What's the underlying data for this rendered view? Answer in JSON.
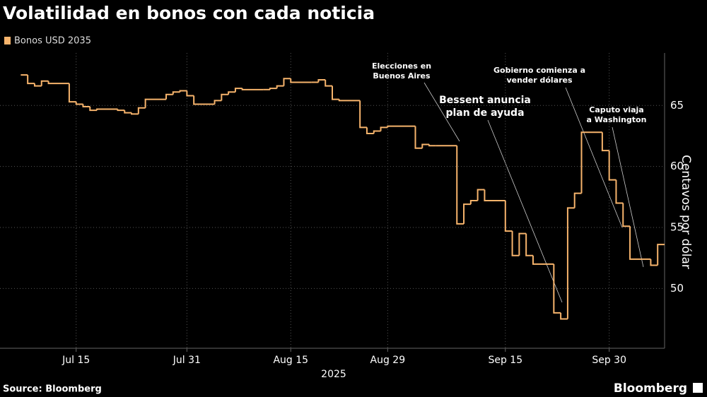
{
  "chart_data": {
    "type": "step",
    "title": "Volatilidad en bonos con cada noticia",
    "source": "Source: Bloomberg",
    "brand": "Bloomberg",
    "y_axis_label": "Centavos por dólar",
    "x_axis_year": "2025",
    "series": [
      {
        "name": "Bonos USD 2035",
        "color": "#f7b46c",
        "x": [
          "2025-07-07",
          "2025-07-08",
          "2025-07-09",
          "2025-07-10",
          "2025-07-11",
          "2025-07-14",
          "2025-07-15",
          "2025-07-16",
          "2025-07-17",
          "2025-07-18",
          "2025-07-21",
          "2025-07-22",
          "2025-07-23",
          "2025-07-24",
          "2025-07-25",
          "2025-07-28",
          "2025-07-29",
          "2025-07-30",
          "2025-07-31",
          "2025-08-01",
          "2025-08-04",
          "2025-08-05",
          "2025-08-06",
          "2025-08-07",
          "2025-08-08",
          "2025-08-11",
          "2025-08-12",
          "2025-08-13",
          "2025-08-14",
          "2025-08-15",
          "2025-08-18",
          "2025-08-19",
          "2025-08-20",
          "2025-08-21",
          "2025-08-22",
          "2025-08-25",
          "2025-08-26",
          "2025-08-27",
          "2025-08-28",
          "2025-08-29",
          "2025-09-02",
          "2025-09-03",
          "2025-09-04",
          "2025-09-05",
          "2025-09-08",
          "2025-09-09",
          "2025-09-10",
          "2025-09-11",
          "2025-09-12",
          "2025-09-15",
          "2025-09-16",
          "2025-09-17",
          "2025-09-18",
          "2025-09-19",
          "2025-09-22",
          "2025-09-23",
          "2025-09-24",
          "2025-09-25",
          "2025-09-26",
          "2025-09-29",
          "2025-09-30",
          "2025-10-01",
          "2025-10-02",
          "2025-10-03",
          "2025-10-06",
          "2025-10-07"
        ],
        "values": [
          67.5,
          66.8,
          66.6,
          67.0,
          66.8,
          65.3,
          65.1,
          64.9,
          64.6,
          64.7,
          64.6,
          64.4,
          64.3,
          64.8,
          65.5,
          65.9,
          66.1,
          66.2,
          65.8,
          65.1,
          65.4,
          65.9,
          66.1,
          66.4,
          66.3,
          66.3,
          66.4,
          66.6,
          67.2,
          66.9,
          66.9,
          67.1,
          66.6,
          65.5,
          65.4,
          63.2,
          62.7,
          62.9,
          63.2,
          63.3,
          61.5,
          61.8,
          61.7,
          61.7,
          55.3,
          56.9,
          57.2,
          58.1,
          57.2,
          54.7,
          52.7,
          54.5,
          52.7,
          52.0,
          48.0,
          47.5,
          56.6,
          57.8,
          62.8,
          61.3,
          58.9,
          57.0,
          55.1,
          52.4,
          51.9,
          53.6
        ]
      }
    ],
    "xlim": [
      "2025-07-04",
      "2025-10-08"
    ],
    "xticks": [
      {
        "value": "2025-07-15",
        "label": "Jul 15"
      },
      {
        "value": "2025-07-31",
        "label": "Jul 31"
      },
      {
        "value": "2025-08-15",
        "label": "Aug 15"
      },
      {
        "value": "2025-08-29",
        "label": "Aug 29"
      },
      {
        "value": "2025-09-15",
        "label": "Sep 15"
      },
      {
        "value": "2025-09-30",
        "label": "Sep 30"
      }
    ],
    "ylim": [
      45.1,
      69.3
    ],
    "yticks": [
      50,
      55,
      60,
      65
    ],
    "grid": true,
    "annotations": [
      {
        "lines": [
          "Elecciones en",
          "Buenos Aires"
        ]
      },
      {
        "lines": [
          "Bessent anuncia",
          "plan de ayuda"
        ]
      },
      {
        "lines": [
          "Gobierno comienza a",
          "vender dólares"
        ]
      },
      {
        "lines": [
          "Caputo viaja",
          "a Washington"
        ]
      }
    ]
  }
}
